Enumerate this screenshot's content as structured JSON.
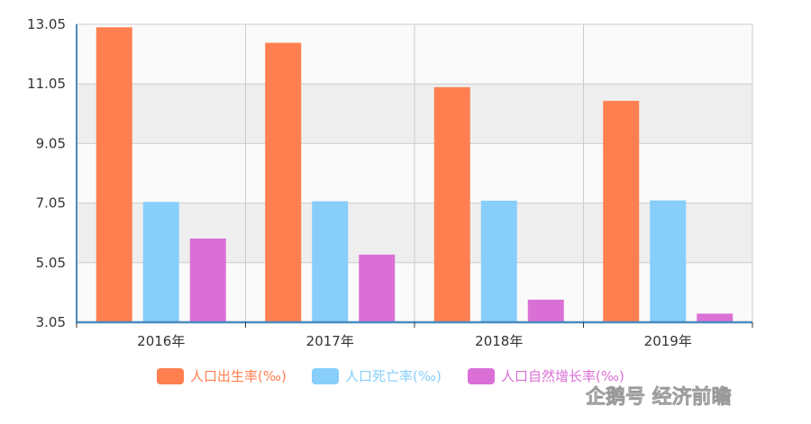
{
  "chart_data": {
    "type": "bar",
    "title": "",
    "xlabel": "",
    "ylabel": "",
    "categories": [
      "2016年",
      "2017年",
      "2018年",
      "2019年"
    ],
    "series": [
      {
        "name": "人口出生率(‰)",
        "color": "#ff7f50",
        "values": [
          12.95,
          12.43,
          10.94,
          10.48
        ]
      },
      {
        "name": "人口死亡率(‰)",
        "color": "#87cefa",
        "values": [
          7.09,
          7.11,
          7.13,
          7.14
        ]
      },
      {
        "name": "人口自然增长率(‰)",
        "color": "#da70d6",
        "values": [
          5.86,
          5.32,
          3.81,
          3.34
        ]
      }
    ],
    "ylim": [
      3.05,
      13.05
    ],
    "yticks": [
      "3.05",
      "5.05",
      "7.05",
      "9.05",
      "11.05",
      "13.05"
    ],
    "grid": true,
    "legend": "bottom-center"
  },
  "watermark": {
    "text": "企鹅号 经济前瞻",
    "icon": "penguin-icon"
  }
}
